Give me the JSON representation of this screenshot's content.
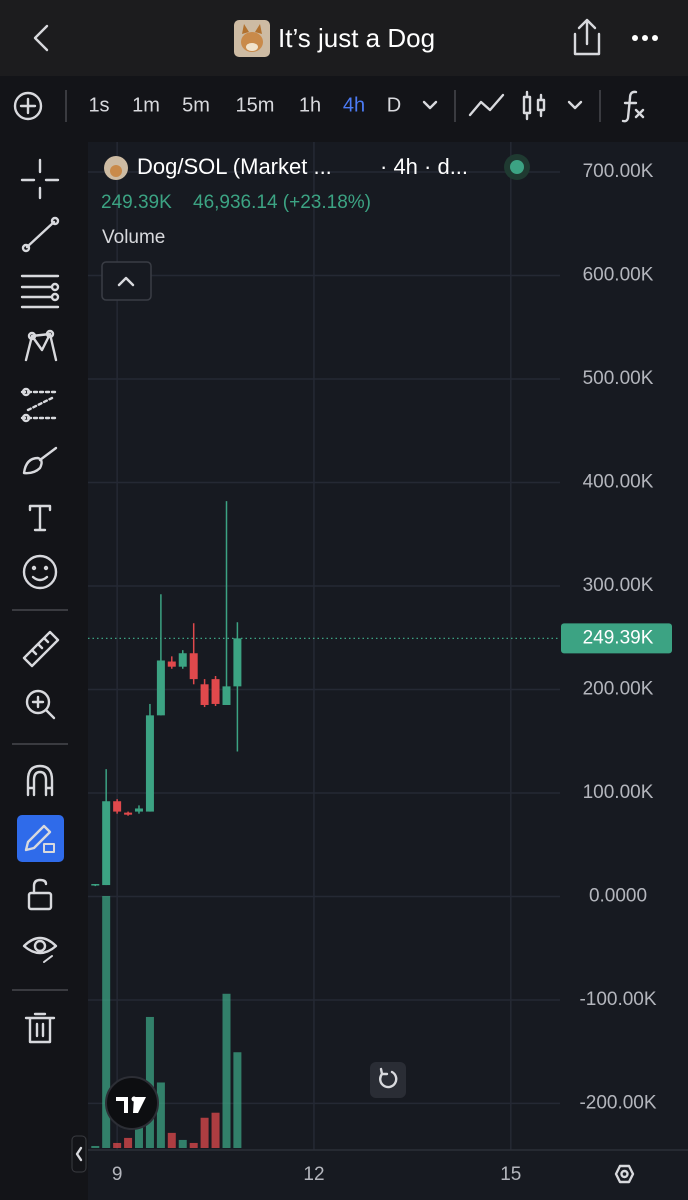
{
  "header": {
    "title": "It’s just a Dog"
  },
  "toolbar": {
    "intervals": [
      "1s",
      "1m",
      "5m",
      "15m",
      "1h",
      "4h",
      "D"
    ],
    "active_interval": 5
  },
  "chart_data": {
    "type": "candlestick",
    "symbol": "Dog/SOL (Market ...",
    "interval": "· 4h · d...",
    "change": "46,936.14 (+23.18%)",
    "volume_label": "Volume",
    "x": [
      8.667,
      8.833,
      9,
      9.167,
      9.333,
      9.5,
      9.667,
      9.833,
      10,
      10.167,
      10.333,
      10.5,
      10.667,
      10.833
    ],
    "open": [
      11000,
      11000,
      92000,
      81000,
      82000,
      82000,
      175000,
      227000,
      222000,
      235000,
      205000,
      210000,
      185000,
      203000
    ],
    "high": [
      12000,
      123000,
      94000,
      82000,
      88000,
      186000,
      292000,
      232000,
      238000,
      264000,
      210000,
      213000,
      382000,
      265000
    ],
    "low": [
      10000,
      11000,
      80000,
      78000,
      80000,
      82000,
      175000,
      220000,
      220000,
      205000,
      183000,
      184000,
      185000,
      140000
    ],
    "close": [
      12000,
      92000,
      82000,
      79000,
      85000,
      175000,
      228000,
      222000,
      235000,
      210000,
      185000,
      186000,
      203000,
      249390
    ],
    "volume": [
      2,
      250,
      5,
      10,
      40,
      130,
      65,
      15,
      8,
      5,
      30,
      35,
      153,
      95
    ],
    "up_color": "#3ca383",
    "down_color": "#e0494c",
    "last_price": {
      "value": 249390,
      "label": "249.39K"
    },
    "ylim": [
      -245000,
      729000
    ],
    "yticks": [
      {
        "value": 700000,
        "label": "700.00K"
      },
      {
        "value": 600000,
        "label": "600.00K"
      },
      {
        "value": 500000,
        "label": "500.00K"
      },
      {
        "value": 400000,
        "label": "400.00K"
      },
      {
        "value": 300000,
        "label": "300.00K"
      },
      {
        "value": 200000,
        "label": "200.00K"
      },
      {
        "value": 100000,
        "label": "100.00K"
      },
      {
        "value": 0,
        "label": "0.0000"
      },
      {
        "value": -100000,
        "label": "-100.00K"
      },
      {
        "value": -200000,
        "label": "-200.00K"
      }
    ],
    "xlim": [
      8.556,
      15.75
    ],
    "xticks": [
      9,
      12,
      15
    ],
    "grid": true
  }
}
